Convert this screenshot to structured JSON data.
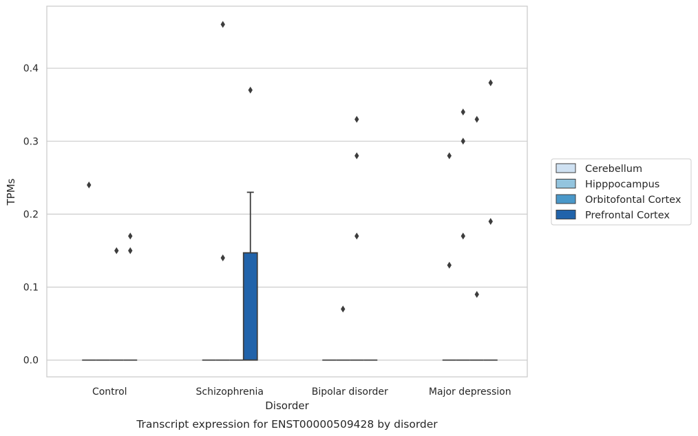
{
  "chart_data": {
    "type": "box",
    "xlabel": "Disorder",
    "ylabel": "TPMs",
    "caption": "Transcript expression for ENST00000509428 by disorder",
    "ylim": [
      -0.023,
      0.485
    ],
    "yticks": [
      "0.0",
      "0.1",
      "0.2",
      "0.3",
      "0.4"
    ],
    "ytick_values": [
      0.0,
      0.1,
      0.2,
      0.3,
      0.4
    ],
    "grid": "horizontal",
    "legend_position": "right",
    "categories": [
      "Control",
      "Schizophrenia",
      "Bipolar disorder",
      "Major depression"
    ],
    "hue_levels": [
      "Cerebellum",
      "Hipppocampus",
      "Orbitofontal Cortex",
      "Prefrontal Cortex"
    ],
    "hue_colors": [
      "#cfe1f2",
      "#93c4de",
      "#4a98c9",
      "#2163aa"
    ],
    "boxes": [
      {
        "category": "Control",
        "hue": "Cerebellum",
        "q1": 0,
        "median": 0,
        "q3": 0,
        "whisker_low": 0,
        "whisker_high": 0,
        "outliers": [
          0.24
        ]
      },
      {
        "category": "Control",
        "hue": "Hipppocampus",
        "q1": 0,
        "median": 0,
        "q3": 0,
        "whisker_low": 0,
        "whisker_high": 0,
        "outliers": []
      },
      {
        "category": "Control",
        "hue": "Orbitofontal Cortex",
        "q1": 0,
        "median": 0,
        "q3": 0,
        "whisker_low": 0,
        "whisker_high": 0,
        "outliers": [
          0.15
        ]
      },
      {
        "category": "Control",
        "hue": "Prefrontal Cortex",
        "q1": 0,
        "median": 0,
        "q3": 0,
        "whisker_low": 0,
        "whisker_high": 0,
        "outliers": [
          0.17,
          0.15
        ]
      },
      {
        "category": "Schizophrenia",
        "hue": "Cerebellum",
        "q1": 0,
        "median": 0,
        "q3": 0,
        "whisker_low": 0,
        "whisker_high": 0,
        "outliers": []
      },
      {
        "category": "Schizophrenia",
        "hue": "Hipppocampus",
        "q1": 0,
        "median": 0,
        "q3": 0,
        "whisker_low": 0,
        "whisker_high": 0,
        "outliers": [
          0.46,
          0.14
        ]
      },
      {
        "category": "Schizophrenia",
        "hue": "Orbitofontal Cortex",
        "q1": 0,
        "median": 0,
        "q3": 0,
        "whisker_low": 0,
        "whisker_high": 0,
        "outliers": []
      },
      {
        "category": "Schizophrenia",
        "hue": "Prefrontal Cortex",
        "q1": 0,
        "median": 0,
        "q3": 0.147,
        "whisker_low": 0,
        "whisker_high": 0.23,
        "outliers": [
          0.37
        ]
      },
      {
        "category": "Bipolar disorder",
        "hue": "Cerebellum",
        "q1": 0,
        "median": 0,
        "q3": 0,
        "whisker_low": 0,
        "whisker_high": 0,
        "outliers": []
      },
      {
        "category": "Bipolar disorder",
        "hue": "Hipppocampus",
        "q1": 0,
        "median": 0,
        "q3": 0,
        "whisker_low": 0,
        "whisker_high": 0,
        "outliers": [
          0.07
        ]
      },
      {
        "category": "Bipolar disorder",
        "hue": "Orbitofontal Cortex",
        "q1": 0,
        "median": 0,
        "q3": 0,
        "whisker_low": 0,
        "whisker_high": 0,
        "outliers": [
          0.33,
          0.28,
          0.17
        ]
      },
      {
        "category": "Bipolar disorder",
        "hue": "Prefrontal Cortex",
        "q1": 0,
        "median": 0,
        "q3": 0,
        "whisker_low": 0,
        "whisker_high": 0,
        "outliers": []
      },
      {
        "category": "Major depression",
        "hue": "Cerebellum",
        "q1": 0,
        "median": 0,
        "q3": 0,
        "whisker_low": 0,
        "whisker_high": 0,
        "outliers": [
          0.28,
          0.13
        ]
      },
      {
        "category": "Major depression",
        "hue": "Hipppocampus",
        "q1": 0,
        "median": 0,
        "q3": 0,
        "whisker_low": 0,
        "whisker_high": 0,
        "outliers": [
          0.34,
          0.3,
          0.17
        ]
      },
      {
        "category": "Major depression",
        "hue": "Orbitofontal Cortex",
        "q1": 0,
        "median": 0,
        "q3": 0,
        "whisker_low": 0,
        "whisker_high": 0,
        "outliers": [
          0.33,
          0.09
        ]
      },
      {
        "category": "Major depression",
        "hue": "Prefrontal Cortex",
        "q1": 0,
        "median": 0,
        "q3": 0,
        "whisker_low": 0,
        "whisker_high": 0,
        "outliers": [
          0.38,
          0.19
        ]
      }
    ]
  }
}
